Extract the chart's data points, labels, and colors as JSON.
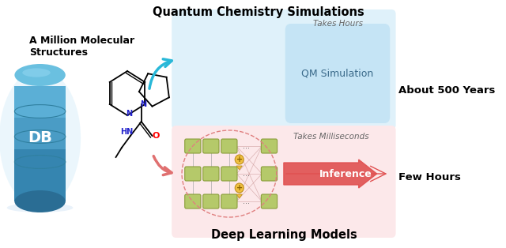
{
  "bg_color": "#ffffff",
  "top_label": "Quantum Chemistry Simulations",
  "bottom_label": "Deep Learning Models",
  "left_top_label": "A Million Molecular\nStructures",
  "right_top_label": "About 500 Years",
  "right_bottom_label": "Few Hours",
  "qm_box_text": "QM Simulation",
  "qm_box_color": "#c5e4f5",
  "qm_bg_color": "#dff1fa",
  "dl_bg_color": "#fce8ea",
  "inference_text": "Inference",
  "inference_arrow_color": "#e05050",
  "takes_hours_text": "Takes Hours",
  "takes_ms_text": "Takes Milliseconds",
  "cyan_arrow_color": "#29b8d8",
  "salmon_arrow_color": "#e07070",
  "db_color_top": "#5bafd6",
  "db_color_mid": "#3a8ab5",
  "db_color_bot": "#2a6d94",
  "db_band1": "#4a9cc5",
  "db_band2": "#3585b0",
  "db_band3": "#2a75a0",
  "node_color": "#b5c96a",
  "node_border": "#8a9e3a",
  "conn_color": "#cc8888",
  "attn_color": "#f0c040",
  "attn_border": "#c09020"
}
